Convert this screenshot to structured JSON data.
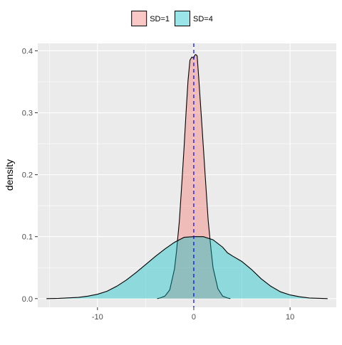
{
  "chart_data": {
    "type": "area",
    "title": "",
    "xlabel": "",
    "ylabel": "density",
    "xlim": [
      -16.2,
      14.8
    ],
    "ylim": [
      -0.014,
      0.412
    ],
    "x_ticks": [
      -10,
      0,
      10
    ],
    "y_ticks": [
      0.0,
      0.1,
      0.2,
      0.3,
      0.4
    ],
    "x_tick_labels": [
      "-10",
      "0",
      "10"
    ],
    "y_tick_labels": [
      "0.0",
      "0.1",
      "0.2",
      "0.3",
      "0.4"
    ],
    "grid": true,
    "legend_position": "top",
    "reference_line": {
      "x": 0,
      "style": "dashed",
      "color": "#0000ff"
    },
    "series": [
      {
        "name": "SD=1",
        "fill": "#F8766D",
        "fill_opacity": 0.4,
        "x": [
          -3.8,
          -3.5,
          -3.0,
          -2.5,
          -2.0,
          -1.8,
          -1.5,
          -1.2,
          -1.0,
          -0.8,
          -0.6,
          -0.4,
          -0.2,
          0.0,
          0.1,
          0.2,
          0.35,
          0.5,
          0.8,
          1.0,
          1.2,
          1.5,
          1.8,
          2.0,
          2.5,
          3.0,
          3.5,
          3.8
        ],
        "y": [
          0.0,
          0.001,
          0.004,
          0.014,
          0.048,
          0.075,
          0.125,
          0.195,
          0.245,
          0.3,
          0.352,
          0.385,
          0.39,
          0.388,
          0.393,
          0.394,
          0.392,
          0.36,
          0.29,
          0.243,
          0.195,
          0.126,
          0.078,
          0.05,
          0.016,
          0.004,
          0.001,
          0.0
        ]
      },
      {
        "name": "SD=4",
        "fill": "#00BFC4",
        "fill_opacity": 0.4,
        "x": [
          -15.3,
          -14,
          -12,
          -11,
          -10,
          -9,
          -8,
          -7,
          -6,
          -5,
          -4,
          -3,
          -2,
          -1,
          0,
          1,
          2,
          3,
          3.5,
          4,
          5,
          6,
          7,
          8,
          9,
          10,
          11,
          12,
          13.9
        ],
        "y": [
          0.0,
          0.0005,
          0.002,
          0.004,
          0.007,
          0.012,
          0.02,
          0.03,
          0.042,
          0.055,
          0.068,
          0.08,
          0.091,
          0.099,
          0.1,
          0.1,
          0.095,
          0.083,
          0.074,
          0.069,
          0.06,
          0.047,
          0.032,
          0.02,
          0.011,
          0.006,
          0.003,
          0.001,
          0.0
        ]
      }
    ]
  }
}
